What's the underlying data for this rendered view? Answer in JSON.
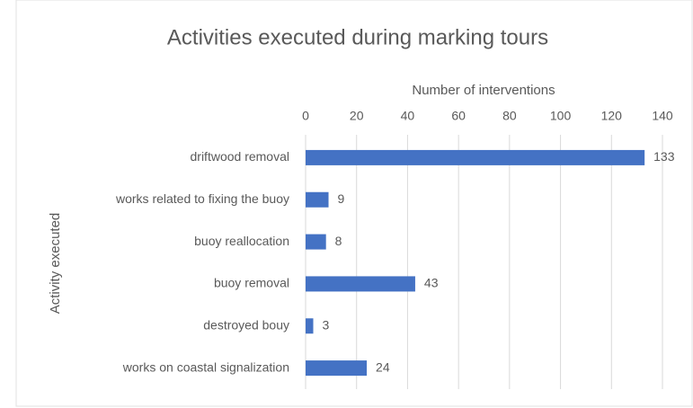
{
  "chart_data": {
    "type": "bar",
    "orientation": "horizontal",
    "title": "Activities executed during marking tours",
    "x_label": "Number of interventions",
    "y_label": "Activity executed",
    "categories": [
      "driftwood removal",
      "works related to fixing the buoy",
      "buoy reallocation",
      "buoy removal",
      "destroyed bouy",
      "works on coastal signalization"
    ],
    "values": [
      133,
      9,
      8,
      43,
      3,
      24
    ],
    "color": "#4472c4",
    "xlim": [
      0,
      140
    ],
    "xticks": [
      0,
      20,
      40,
      60,
      80,
      100,
      120,
      140
    ],
    "grid": true,
    "x_axis_position": "top",
    "data_labels": true
  }
}
